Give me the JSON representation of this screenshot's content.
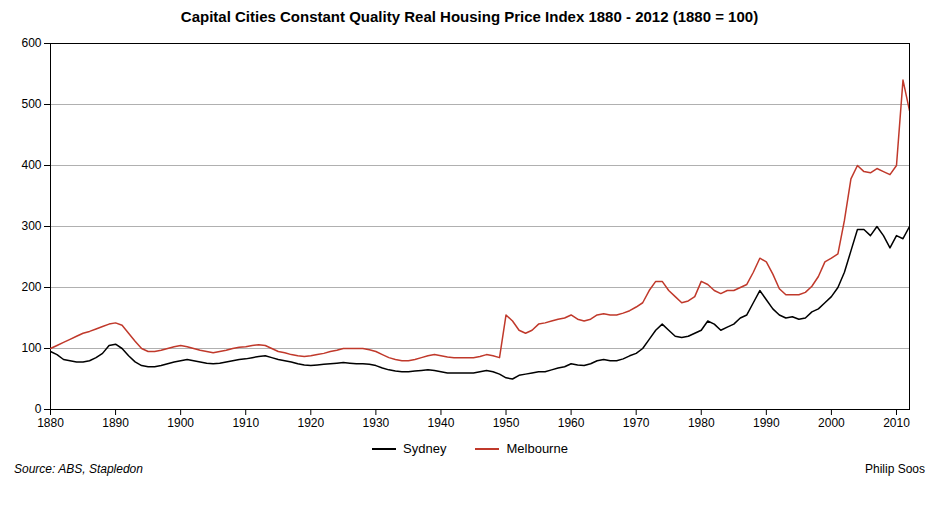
{
  "chart_data": {
    "type": "line",
    "title": "Capital Cities Constant Quality Real Housing Price Index 1880 - 2012 (1880 = 100)",
    "annotations": [
      "Source: ABS, Stapledon",
      "Philip Soos"
    ],
    "x": [
      1880,
      1881,
      1882,
      1883,
      1884,
      1885,
      1886,
      1887,
      1888,
      1889,
      1890,
      1891,
      1892,
      1893,
      1894,
      1895,
      1896,
      1897,
      1898,
      1899,
      1900,
      1901,
      1902,
      1903,
      1904,
      1905,
      1906,
      1907,
      1908,
      1909,
      1910,
      1911,
      1912,
      1913,
      1914,
      1915,
      1916,
      1917,
      1918,
      1919,
      1920,
      1921,
      1922,
      1923,
      1924,
      1925,
      1926,
      1927,
      1928,
      1929,
      1930,
      1931,
      1932,
      1933,
      1934,
      1935,
      1936,
      1937,
      1938,
      1939,
      1940,
      1941,
      1942,
      1943,
      1944,
      1945,
      1946,
      1947,
      1948,
      1949,
      1950,
      1951,
      1952,
      1953,
      1954,
      1955,
      1956,
      1957,
      1958,
      1959,
      1960,
      1961,
      1962,
      1963,
      1964,
      1965,
      1966,
      1967,
      1968,
      1969,
      1970,
      1971,
      1972,
      1973,
      1974,
      1975,
      1976,
      1977,
      1978,
      1979,
      1980,
      1981,
      1982,
      1983,
      1984,
      1985,
      1986,
      1987,
      1988,
      1989,
      1990,
      1991,
      1992,
      1993,
      1994,
      1995,
      1996,
      1997,
      1998,
      1999,
      2000,
      2001,
      2002,
      2003,
      2004,
      2005,
      2006,
      2007,
      2008,
      2009,
      2010,
      2011,
      2012
    ],
    "series": [
      {
        "name": "Sydney",
        "color": "#000000",
        "values": [
          95,
          90,
          82,
          80,
          78,
          78,
          80,
          85,
          92,
          105,
          107,
          100,
          88,
          78,
          72,
          70,
          70,
          72,
          75,
          78,
          80,
          82,
          80,
          78,
          76,
          75,
          76,
          78,
          80,
          82,
          83,
          85,
          87,
          88,
          85,
          82,
          80,
          78,
          75,
          73,
          72,
          73,
          74,
          75,
          76,
          77,
          76,
          75,
          75,
          74,
          72,
          68,
          65,
          63,
          62,
          62,
          63,
          64,
          65,
          64,
          62,
          60,
          60,
          60,
          60,
          60,
          62,
          64,
          62,
          58,
          52,
          50,
          56,
          58,
          60,
          62,
          62,
          65,
          68,
          70,
          75,
          73,
          72,
          75,
          80,
          82,
          80,
          80,
          83,
          88,
          92,
          100,
          115,
          130,
          140,
          130,
          120,
          118,
          120,
          125,
          130,
          145,
          140,
          130,
          135,
          140,
          150,
          155,
          175,
          195,
          180,
          165,
          155,
          150,
          152,
          148,
          150,
          160,
          165,
          175,
          185,
          200,
          225,
          260,
          295,
          295,
          285,
          300,
          285,
          265,
          285,
          280,
          300
        ]
      },
      {
        "name": "Melbourne",
        "color": "#c0392b",
        "values": [
          100,
          105,
          110,
          115,
          120,
          125,
          128,
          132,
          136,
          140,
          142,
          138,
          125,
          112,
          100,
          95,
          95,
          97,
          100,
          103,
          105,
          103,
          100,
          97,
          95,
          93,
          95,
          97,
          100,
          102,
          103,
          105,
          106,
          105,
          100,
          95,
          93,
          90,
          88,
          87,
          88,
          90,
          92,
          95,
          97,
          100,
          100,
          100,
          100,
          98,
          95,
          90,
          85,
          82,
          80,
          80,
          82,
          85,
          88,
          90,
          88,
          86,
          85,
          85,
          85,
          85,
          87,
          90,
          88,
          85,
          155,
          145,
          130,
          125,
          130,
          140,
          142,
          145,
          148,
          150,
          155,
          148,
          145,
          148,
          155,
          157,
          155,
          155,
          158,
          162,
          168,
          175,
          195,
          210,
          210,
          195,
          185,
          175,
          178,
          185,
          210,
          205,
          195,
          190,
          195,
          195,
          200,
          205,
          225,
          248,
          242,
          222,
          198,
          188,
          188,
          188,
          192,
          202,
          218,
          242,
          248,
          255,
          310,
          378,
          400,
          390,
          388,
          395,
          390,
          385,
          400,
          540,
          490
        ]
      }
    ],
    "xlim": [
      1880,
      2012
    ],
    "ylim": [
      0,
      600
    ],
    "xticks": [
      1880,
      1890,
      1900,
      1910,
      1920,
      1930,
      1940,
      1950,
      1960,
      1970,
      1980,
      1990,
      2000,
      2010
    ],
    "yticks": [
      0,
      100,
      200,
      300,
      400,
      500,
      600
    ],
    "grid": "y",
    "legend": "bottom"
  }
}
